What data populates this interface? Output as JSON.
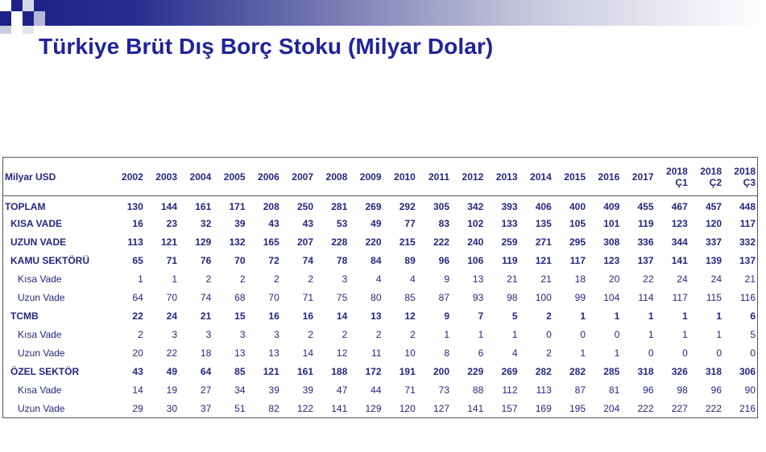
{
  "title": "Türkiye Brüt Dış Borç Stoku (Milyar Dolar)",
  "table": {
    "corner": "Milyar USD",
    "columns": [
      "2002",
      "2003",
      "2004",
      "2005",
      "2006",
      "2007",
      "2008",
      "2009",
      "2010",
      "2011",
      "2012",
      "2013",
      "2014",
      "2015",
      "2016",
      "2017",
      "2018 Ç1",
      "2018 Ç2",
      "2018 Ç3"
    ],
    "rows": [
      {
        "label": "TOPLAM",
        "level": 0,
        "values": [
          "130",
          "144",
          "161",
          "171",
          "208",
          "250",
          "281",
          "269",
          "292",
          "305",
          "342",
          "393",
          "406",
          "400",
          "409",
          "455",
          "467",
          "457",
          "448"
        ]
      },
      {
        "label": "KISA VADE",
        "level": 1,
        "values": [
          "16",
          "23",
          "32",
          "39",
          "43",
          "43",
          "53",
          "49",
          "77",
          "83",
          "102",
          "133",
          "135",
          "105",
          "101",
          "119",
          "123",
          "120",
          "117"
        ]
      },
      {
        "label": "UZUN VADE",
        "level": 1,
        "values": [
          "113",
          "121",
          "129",
          "132",
          "165",
          "207",
          "228",
          "220",
          "215",
          "222",
          "240",
          "259",
          "271",
          "295",
          "308",
          "336",
          "344",
          "337",
          "332"
        ]
      },
      {
        "label": "KAMU SEKTÖRÜ",
        "level": 1,
        "values": [
          "65",
          "71",
          "76",
          "70",
          "72",
          "74",
          "78",
          "84",
          "89",
          "96",
          "106",
          "119",
          "121",
          "117",
          "123",
          "137",
          "141",
          "139",
          "137"
        ]
      },
      {
        "label": "Kısa Vade",
        "level": 2,
        "values": [
          "1",
          "1",
          "2",
          "2",
          "2",
          "2",
          "3",
          "4",
          "4",
          "9",
          "13",
          "21",
          "21",
          "18",
          "20",
          "22",
          "24",
          "24",
          "21"
        ]
      },
      {
        "label": "Uzun Vade",
        "level": 2,
        "values": [
          "64",
          "70",
          "74",
          "68",
          "70",
          "71",
          "75",
          "80",
          "85",
          "87",
          "93",
          "98",
          "100",
          "99",
          "104",
          "114",
          "117",
          "115",
          "116"
        ]
      },
      {
        "label": "TCMB",
        "level": 1,
        "values": [
          "22",
          "24",
          "21",
          "15",
          "16",
          "16",
          "14",
          "13",
          "12",
          "9",
          "7",
          "5",
          "2",
          "1",
          "1",
          "1",
          "1",
          "1",
          "6"
        ]
      },
      {
        "label": "Kısa Vade",
        "level": 2,
        "values": [
          "2",
          "3",
          "3",
          "3",
          "3",
          "2",
          "2",
          "2",
          "2",
          "1",
          "1",
          "1",
          "0",
          "0",
          "0",
          "1",
          "1",
          "1",
          "5"
        ]
      },
      {
        "label": "Uzun Vade",
        "level": 2,
        "values": [
          "20",
          "22",
          "18",
          "13",
          "13",
          "14",
          "12",
          "11",
          "10",
          "8",
          "6",
          "4",
          "2",
          "1",
          "1",
          "0",
          "0",
          "0",
          "0"
        ]
      },
      {
        "label": "ÖZEL SEKTÖR",
        "level": 1,
        "values": [
          "43",
          "49",
          "64",
          "85",
          "121",
          "161",
          "188",
          "172",
          "191",
          "200",
          "229",
          "269",
          "282",
          "282",
          "285",
          "318",
          "326",
          "318",
          "306"
        ]
      },
      {
        "label": "Kısa Vade",
        "level": 2,
        "values": [
          "14",
          "19",
          "27",
          "34",
          "39",
          "39",
          "47",
          "44",
          "71",
          "73",
          "88",
          "112",
          "113",
          "87",
          "81",
          "96",
          "98",
          "96",
          "90"
        ]
      },
      {
        "label": "Uzun Vade",
        "level": 2,
        "values": [
          "29",
          "30",
          "37",
          "51",
          "82",
          "122",
          "141",
          "129",
          "120",
          "127",
          "141",
          "157",
          "169",
          "195",
          "204",
          "222",
          "227",
          "222",
          "216"
        ]
      }
    ]
  }
}
